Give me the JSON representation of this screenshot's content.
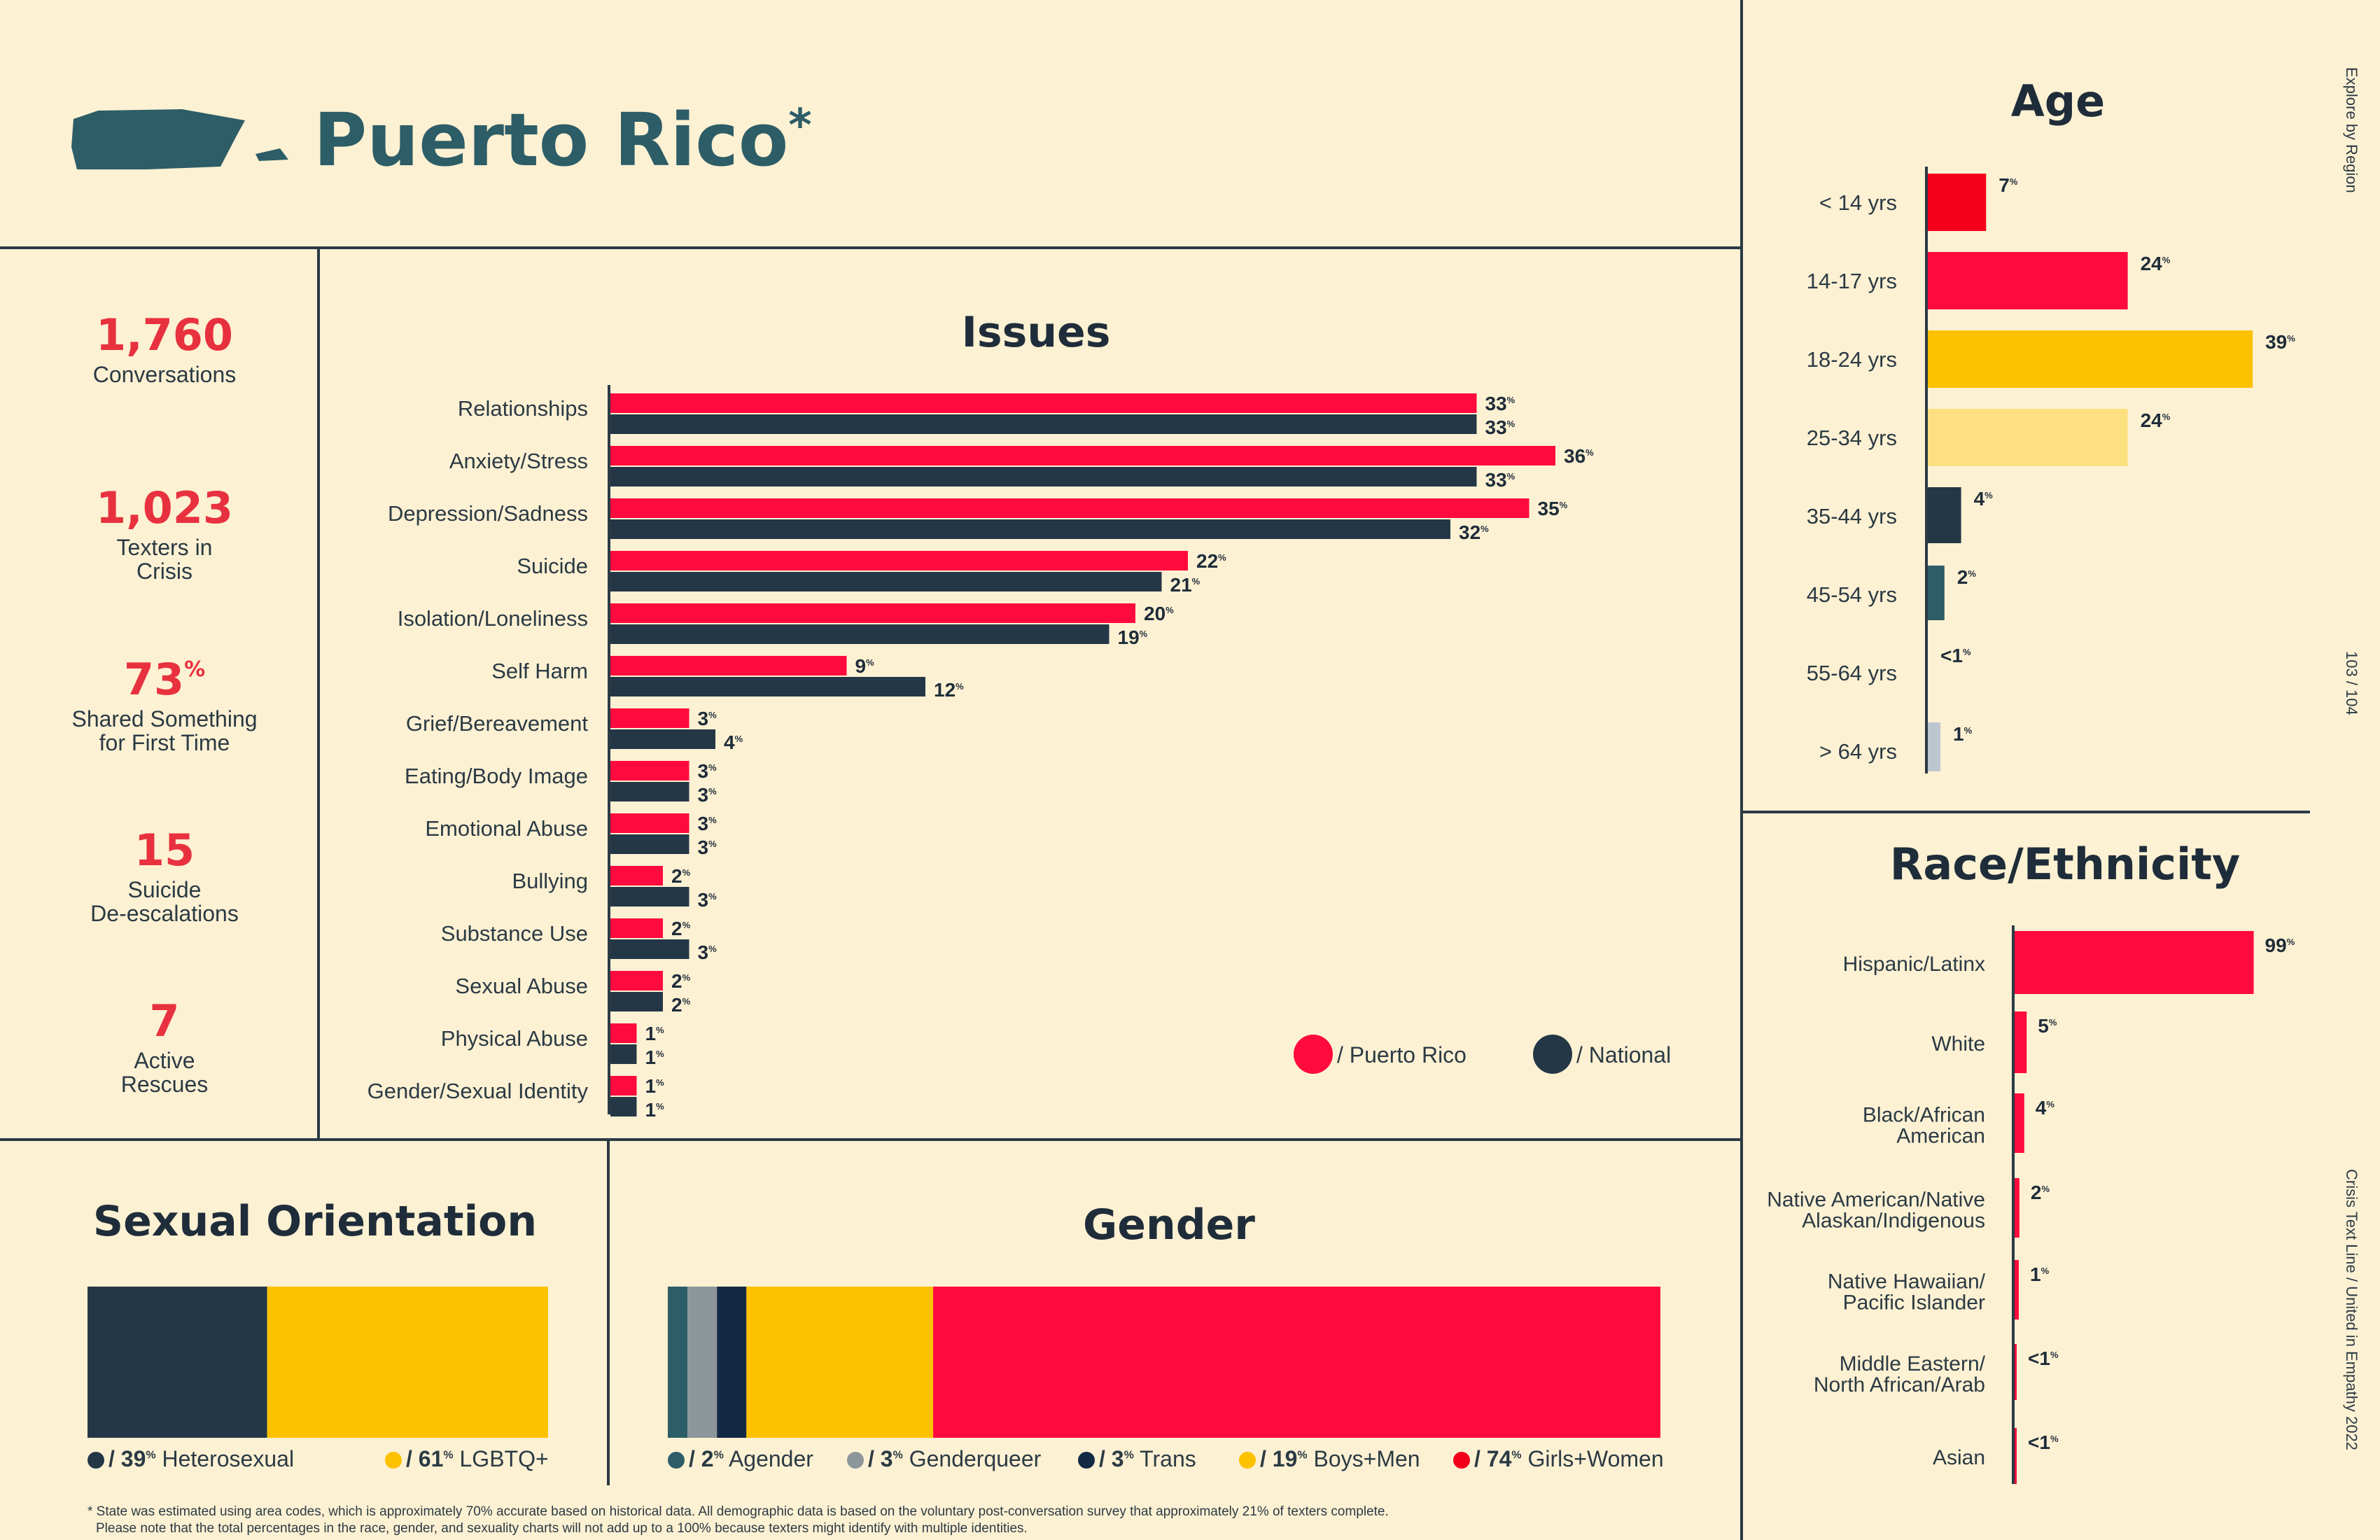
{
  "header": {
    "title": "Puerto Rico",
    "asterisk": "*"
  },
  "side": {
    "explore": "Explore by Region",
    "page": "103 / 104",
    "brand": "Crisis Text Line  /  United in Empathy 2022"
  },
  "stats": [
    {
      "value": "1,760",
      "suffix": "",
      "label": "Conversations"
    },
    {
      "value": "1,023",
      "suffix": "",
      "label": "Texters in\nCrisis"
    },
    {
      "value": "73",
      "suffix": "%",
      "label": "Shared Something\nfor First Time"
    },
    {
      "value": "15",
      "suffix": "",
      "label": "Suicide\nDe-escalations"
    },
    {
      "value": "7",
      "suffix": "",
      "label": "Active\nRescues"
    }
  ],
  "colors": {
    "pr": "#ff0a3e",
    "national": "#243746",
    "yellow": "#fcc200",
    "lightyellow": "#fde180",
    "teal": "#2d5d67",
    "gray": "#8d969b",
    "navy": "#132a44",
    "red": "#f5001a",
    "lightgray": "#bcc6cf"
  },
  "issues": {
    "title": "Issues",
    "legend": {
      "pr": "/ Puerto Rico",
      "national": "/ National"
    }
  },
  "age": {
    "title": "Age"
  },
  "race": {
    "title": "Race/Ethnicity"
  },
  "orientation": {
    "title": "Sexual Orientation",
    "legend": [
      {
        "pct": "39",
        "label": "Heterosexual"
      },
      {
        "pct": "61",
        "label": "LGBTQ+"
      }
    ]
  },
  "gender": {
    "title": "Gender",
    "legend": [
      {
        "pct": "2",
        "label": "Agender"
      },
      {
        "pct": "3",
        "label": "Genderqueer"
      },
      {
        "pct": "3",
        "label": "Trans"
      },
      {
        "pct": "19",
        "label": "Boys+Men"
      },
      {
        "pct": "74",
        "label": "Girls+Women"
      }
    ]
  },
  "footnote": {
    "line1": "* State was estimated using area codes, which is approximately 70% accurate based on historical data. All demographic data is based on the voluntary post-conversation survey that approximately 21% of texters complete.",
    "line2": "Please note that the total percentages in the race, gender, and sexuality charts will not add up to a 100% because texters might identify with multiple identities."
  },
  "chart_data": [
    {
      "type": "bar",
      "title": "Issues",
      "orientation": "horizontal",
      "categories": [
        "Relationships",
        "Anxiety/Stress",
        "Depression/Sadness",
        "Suicide",
        "Isolation/Loneliness",
        "Self Harm",
        "Grief/Bereavement",
        "Eating/Body Image",
        "Emotional Abuse",
        "Bullying",
        "Substance Use",
        "Sexual Abuse",
        "Physical Abuse",
        "Gender/Sexual Identity"
      ],
      "series": [
        {
          "name": "Puerto Rico",
          "values": [
            33,
            36,
            35,
            22,
            20,
            9,
            3,
            3,
            3,
            2,
            2,
            2,
            1,
            1
          ]
        },
        {
          "name": "National",
          "values": [
            33,
            33,
            32,
            21,
            19,
            12,
            4,
            3,
            3,
            3,
            3,
            2,
            1,
            1
          ]
        }
      ],
      "unit": "%",
      "legend": "bottom-right",
      "grid": false
    },
    {
      "type": "bar",
      "title": "Age",
      "orientation": "horizontal",
      "categories": [
        "< 14 yrs",
        "14-17 yrs",
        "18-24 yrs",
        "25-34 yrs",
        "35-44 yrs",
        "45-54 yrs",
        "55-64 yrs",
        "> 64 yrs"
      ],
      "values": [
        7,
        24,
        39,
        24,
        4,
        2,
        0.3,
        1
      ],
      "labels": [
        "7",
        "24",
        "39",
        "24",
        "4",
        "2",
        "<1",
        "1"
      ],
      "colors": [
        "#f5001a",
        "#ff0a3e",
        "#fcc200",
        "#fde180",
        "#243746",
        "#2d5d67",
        "#2d5d67",
        "#bcc6cf"
      ],
      "unit": "%",
      "grid": false
    },
    {
      "type": "bar",
      "title": "Race/Ethnicity",
      "orientation": "horizontal",
      "categories": [
        "Hispanic/Latinx",
        "White",
        "Black/African\nAmerican",
        "Native American/Native\nAlaskan/Indigenous",
        "Native Hawaiian/\nPacific Islander",
        "Middle Eastern/\nNorth African/Arab",
        "Asian"
      ],
      "values": [
        99,
        5,
        4,
        2,
        1,
        0.3,
        0.3
      ],
      "labels": [
        "99",
        "5",
        "4",
        "2",
        "1",
        "<1",
        "<1"
      ],
      "unit": "%",
      "grid": false
    },
    {
      "type": "bar",
      "title": "Sexual Orientation",
      "stacked": true,
      "categories": [
        "Heterosexual",
        "LGBTQ+"
      ],
      "values": [
        39,
        61
      ],
      "colors": [
        "#243746",
        "#fcc200"
      ],
      "unit": "%"
    },
    {
      "type": "bar",
      "title": "Gender",
      "stacked": true,
      "categories": [
        "Agender",
        "Genderqueer",
        "Trans",
        "Boys+Men",
        "Girls+Women"
      ],
      "values": [
        2,
        3,
        3,
        19,
        74
      ],
      "colors": [
        "#2d5d67",
        "#8d969b",
        "#132a44",
        "#fcc200",
        "#ff0a3e"
      ],
      "unit": "%"
    }
  ]
}
